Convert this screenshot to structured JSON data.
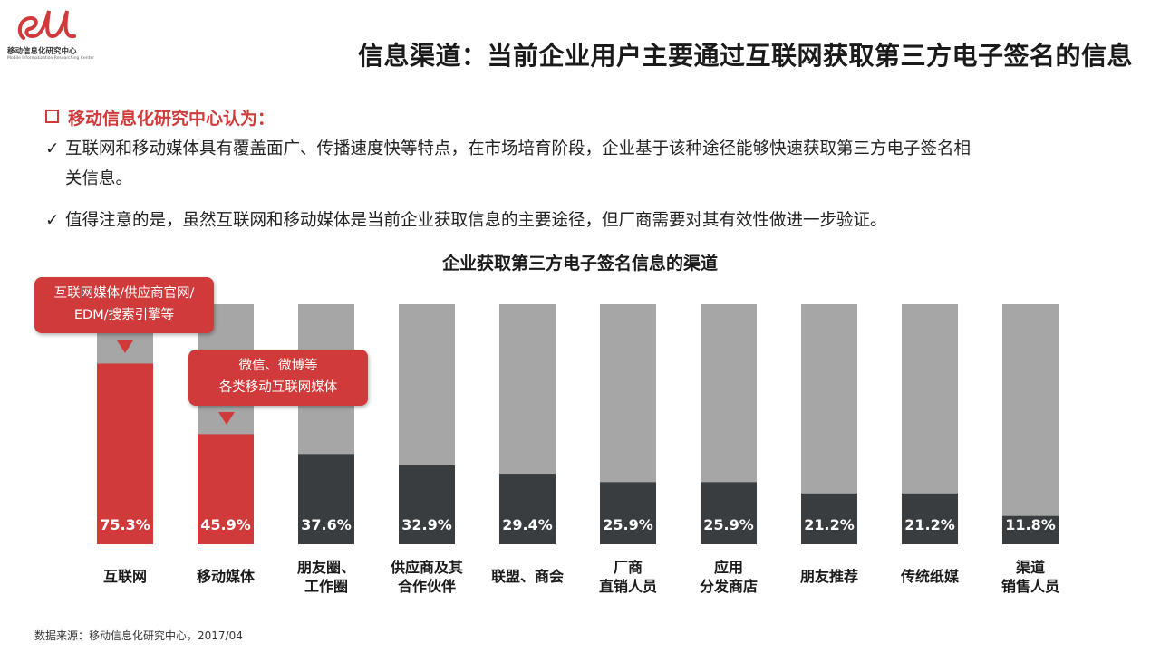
{
  "logo": {
    "text": "移动信息化研究中心",
    "subtext": "Mobile Informatization Researching Center"
  },
  "title": "信息渠道：当前企业用户主要通过互联网获取第三方电子签名的信息",
  "section_head": "移动信息化研究中心认为：",
  "bullets": [
    {
      "line1": "互联网和移动媒体具有覆盖面广、传播速度快等特点，在市场培育阶段，企业基于该种途径能够快速获取第三方电子签名相",
      "line2": "关信息。"
    },
    {
      "line1": "值得注意的是，虽然互联网和移动媒体是当前企业获取信息的主要途径，但厂商需要对其有效性做进一步验证。"
    }
  ],
  "check_mark": "✓",
  "callouts": [
    {
      "line1": "互联网媒体/供应商官网/",
      "line2": "EDM/搜索引擎等"
    },
    {
      "line1": "微信、微博等",
      "line2": "各类移动互联网媒体"
    }
  ],
  "source": "数据来源：移动信息化研究中心，2017/04",
  "colors": {
    "accent": "#d13a3a",
    "dark_bar": "#3a3d40",
    "bg_bar": "#a6a6a6"
  },
  "chart_data": {
    "type": "bar",
    "title": "企业获取第三方电子签名信息的渠道",
    "categories": [
      [
        "互联网"
      ],
      [
        "移动媒体"
      ],
      [
        "朋友圈、",
        "工作圈"
      ],
      [
        "供应商及其",
        "合作伙伴"
      ],
      [
        "联盟、商会"
      ],
      [
        "厂商",
        "直销人员"
      ],
      [
        "应用",
        "分发商店"
      ],
      [
        "朋友推荐"
      ],
      [
        "传统纸媒"
      ],
      [
        "渠道",
        "销售人员"
      ]
    ],
    "values": [
      75.3,
      45.9,
      37.6,
      32.9,
      29.4,
      25.9,
      25.9,
      21.2,
      21.2,
      11.8
    ],
    "value_labels": [
      "75.3%",
      "45.9%",
      "37.6%",
      "32.9%",
      "29.4%",
      "25.9%",
      "25.9%",
      "21.2%",
      "21.2%",
      "11.8%"
    ],
    "highlight": [
      true,
      true,
      false,
      false,
      false,
      false,
      false,
      false,
      false,
      false
    ],
    "ylim": [
      0,
      100
    ],
    "xlabel": "",
    "ylabel": ""
  }
}
